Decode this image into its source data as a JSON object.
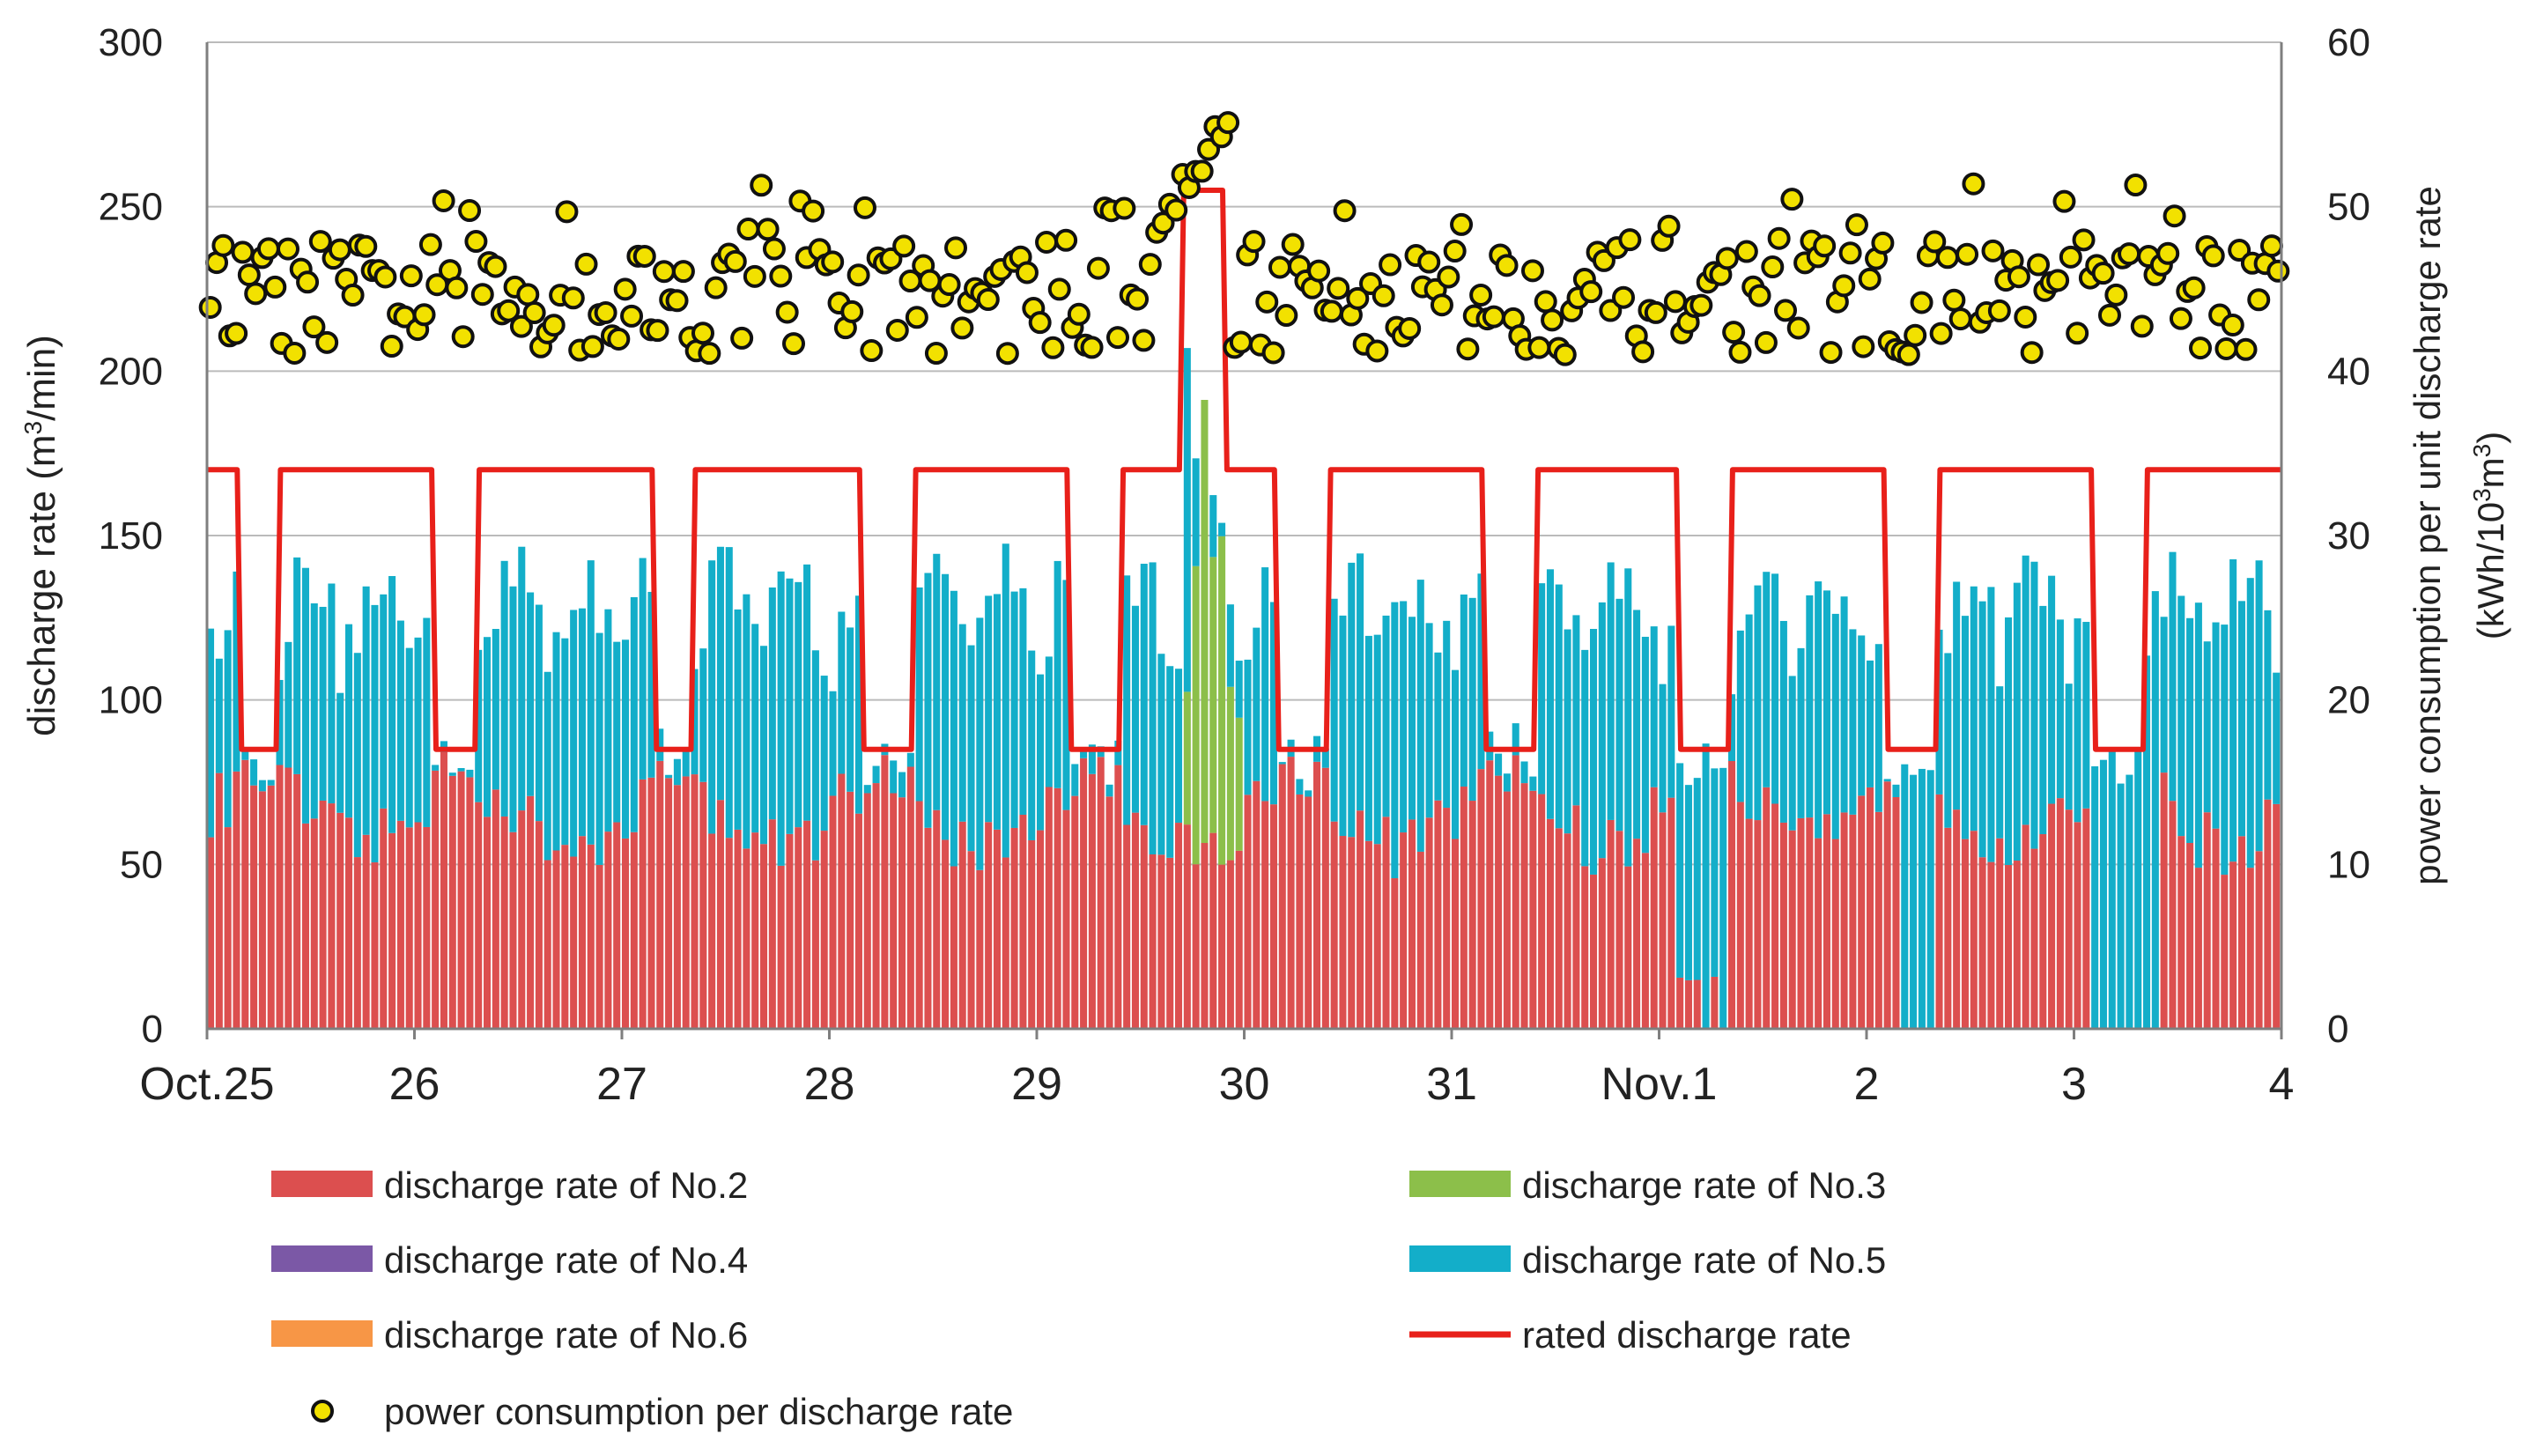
{
  "chart_data": {
    "type": "bar",
    "stacked": true,
    "x_categories": [
      "Oct.25",
      "26",
      "27",
      "28",
      "29",
      "30",
      "31",
      "Nov.1",
      "2",
      "3",
      "4"
    ],
    "samples_per_day": 24,
    "y_left": {
      "label": "discharge rate  (m³/min)",
      "label_main": "discharge rate  (m",
      "label_sup": "3",
      "label_tail": "/min)",
      "min": 0,
      "max": 300,
      "ticks": [
        "0",
        "50",
        "100",
        "150",
        "200",
        "250",
        "300"
      ]
    },
    "y_right": {
      "label": "power consumption per unit discharge rate (kWh/10³m³)",
      "line1": "power consumption per unit discharge rate",
      "line2_main": "(kWh/10",
      "line2_sup": "3",
      "line2_sup_tail": "m",
      "line2_sup2": "3",
      "line2_end": ")",
      "min": 0,
      "max": 60,
      "ticks": [
        "0",
        "10",
        "20",
        "30",
        "40",
        "50",
        "60"
      ]
    },
    "grid": true,
    "colors": {
      "no2": "#dc4f4f",
      "no3": "#8cbf4a",
      "no4": "#7b58a6",
      "no5": "#13aec9",
      "no6": "#f79646",
      "rated": "#e8201a",
      "power_fill": "#f2e100",
      "grid": "#bbbbbb",
      "axis": "#7f7f7f"
    },
    "rated_discharge_rate": {
      "normal": 170,
      "reduced": 85,
      "peak": 255,
      "reduced_windows_days": [
        [
          0.15,
          0.35
        ],
        [
          1.1,
          1.3
        ],
        [
          2.15,
          2.35
        ],
        [
          3.15,
          3.4
        ],
        [
          4.15,
          4.4
        ],
        [
          5.15,
          5.4
        ],
        [
          6.15,
          6.4
        ],
        [
          7.1,
          7.35
        ],
        [
          8.1,
          8.35
        ],
        [
          9.1,
          9.35
        ]
      ],
      "peak_window_days": [
        4.7,
        4.9
      ]
    },
    "series": [
      {
        "name": "discharge rate of No.2",
        "key": "no2",
        "pattern": {
          "night_mean": 75,
          "day_mean": 60,
          "amp": 10
        }
      },
      {
        "name": "discharge rate of No.3",
        "key": "no3",
        "pattern": {
          "active_window_days": [
            4.75,
            4.95
          ],
          "peak": 150
        }
      },
      {
        "name": "discharge rate of No.4",
        "key": "no4",
        "pattern": {
          "active": false
        }
      },
      {
        "name": "discharge rate of No.5",
        "key": "no5",
        "pattern": {
          "top_mean": 130,
          "top_amp": 20,
          "peak_day5": 210
        }
      },
      {
        "name": "discharge rate of No.6",
        "key": "no6",
        "pattern": {
          "active": false
        }
      },
      {
        "name": "rated discharge rate",
        "key": "rated",
        "type": "line"
      },
      {
        "name": "power consumption per discharge rate",
        "key": "power",
        "type": "scatter",
        "axis": "right",
        "typical_range": [
          41,
          49
        ],
        "peak": 55
      }
    ]
  }
}
